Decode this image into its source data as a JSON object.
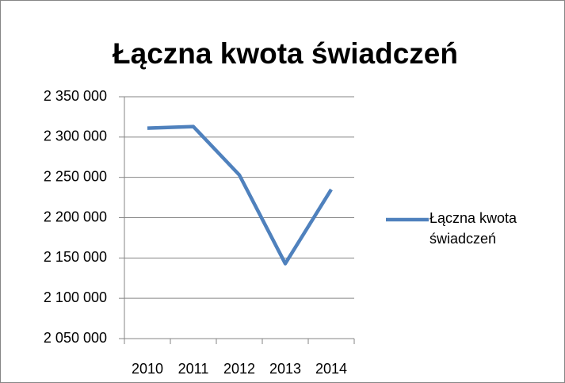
{
  "chart_data": {
    "type": "line",
    "title": "Łączna kwota świadczeń",
    "categories": [
      "2010",
      "2011",
      "2012",
      "2013",
      "2014"
    ],
    "series": [
      {
        "name": "Łączna kwota świadczeń",
        "color": "#4f81bd",
        "values": [
          2311000,
          2313000,
          2253000,
          2143000,
          2235000
        ]
      }
    ],
    "ylim": [
      2050000,
      2350000
    ],
    "yticks": [
      {
        "value": 2050000,
        "label": "2 050 000"
      },
      {
        "value": 2100000,
        "label": "2 100 000"
      },
      {
        "value": 2150000,
        "label": "2 150 000"
      },
      {
        "value": 2200000,
        "label": "2 200 000"
      },
      {
        "value": 2250000,
        "label": "2 250 000"
      },
      {
        "value": 2300000,
        "label": "2 300 000"
      },
      {
        "value": 2350000,
        "label": "2 350 000"
      }
    ],
    "grid": true,
    "legend": "right"
  }
}
